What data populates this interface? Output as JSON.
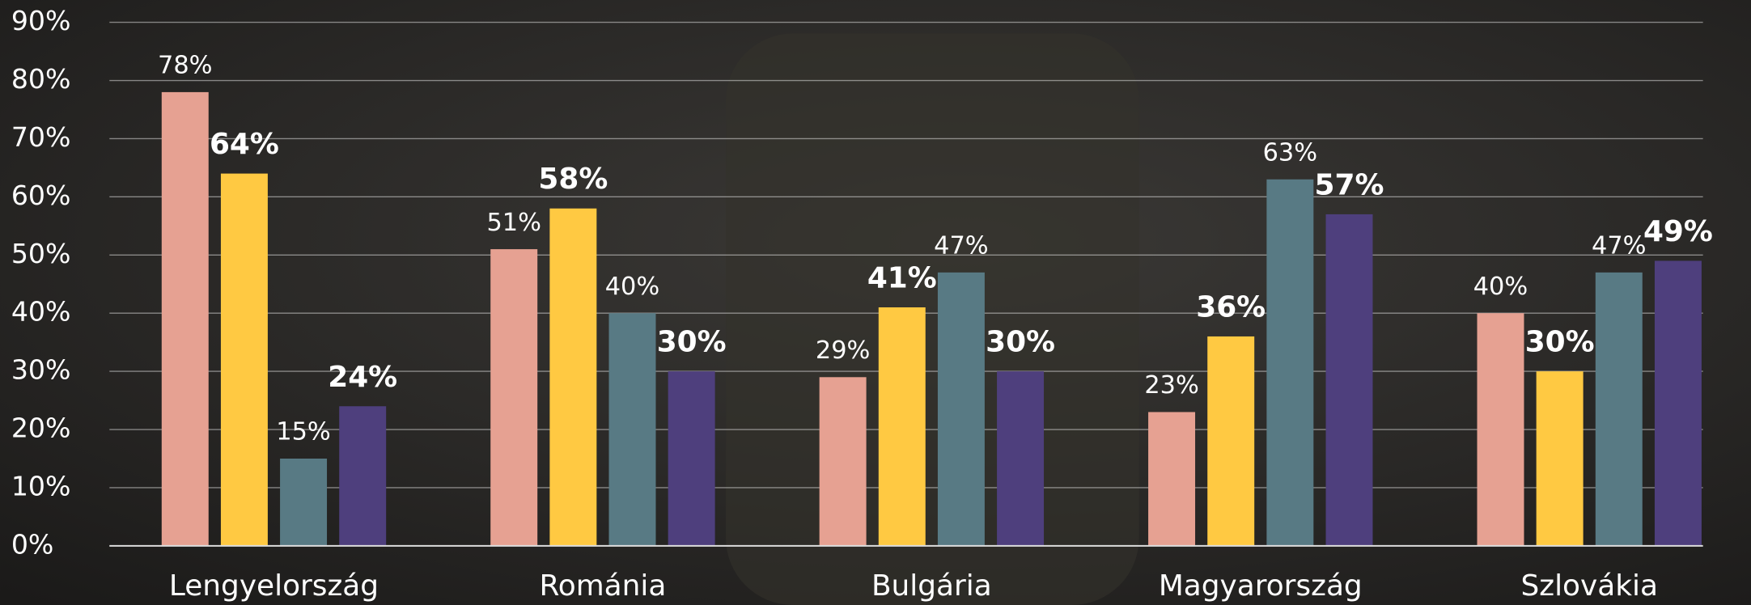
{
  "chart_data": {
    "type": "bar",
    "categories": [
      "Lengyelország",
      "Románia",
      "Bulgária",
      "Magyarország",
      "Szlovákia"
    ],
    "series": [
      {
        "color": "#e6a192",
        "values": [
          78,
          51,
          29,
          23,
          40
        ],
        "value_labels": [
          "78%",
          "51%",
          "29%",
          "23%",
          "40%"
        ]
      },
      {
        "color": "#ffc942",
        "values": [
          64,
          58,
          41,
          36,
          30
        ],
        "value_labels": [
          "64%",
          "58%",
          "41%",
          "36%",
          "30%"
        ]
      },
      {
        "color": "#587a84",
        "values": [
          15,
          40,
          47,
          63,
          47
        ],
        "value_labels": [
          "15%",
          "40%",
          "47%",
          "63%",
          "47%"
        ]
      },
      {
        "color": "#4e3f7d",
        "values": [
          24,
          30,
          30,
          57,
          49
        ],
        "value_labels": [
          "24%",
          "30%",
          "30%",
          "57%",
          "49%"
        ]
      }
    ],
    "ylim": [
      0,
      90
    ],
    "yticks": [
      {
        "value": 0,
        "label": "0%"
      },
      {
        "value": 10,
        "label": "10%"
      },
      {
        "value": 20,
        "label": "20%"
      },
      {
        "value": 30,
        "label": "30%"
      },
      {
        "value": 40,
        "label": "40%"
      },
      {
        "value": 50,
        "label": "50%"
      },
      {
        "value": 60,
        "label": "60%"
      },
      {
        "value": 70,
        "label": "70%"
      },
      {
        "value": 80,
        "label": "80%"
      },
      {
        "value": 90,
        "label": "90%"
      }
    ],
    "grid": true
  }
}
